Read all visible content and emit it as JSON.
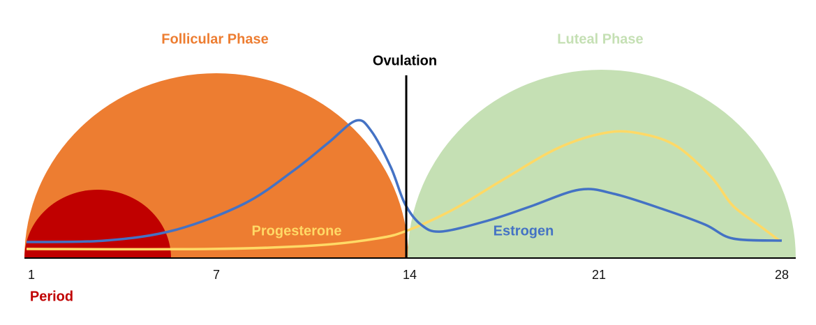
{
  "title_left": "Follicular Phase",
  "title_right": "Luteal Phase",
  "ovulation": "Ovulation",
  "period": "Period",
  "curves": {
    "progesterone": "Progesterone",
    "estrogen": "Estrogen"
  },
  "axis": {
    "ticks": [
      "1",
      "7",
      "14",
      "21",
      "28"
    ]
  }
}
